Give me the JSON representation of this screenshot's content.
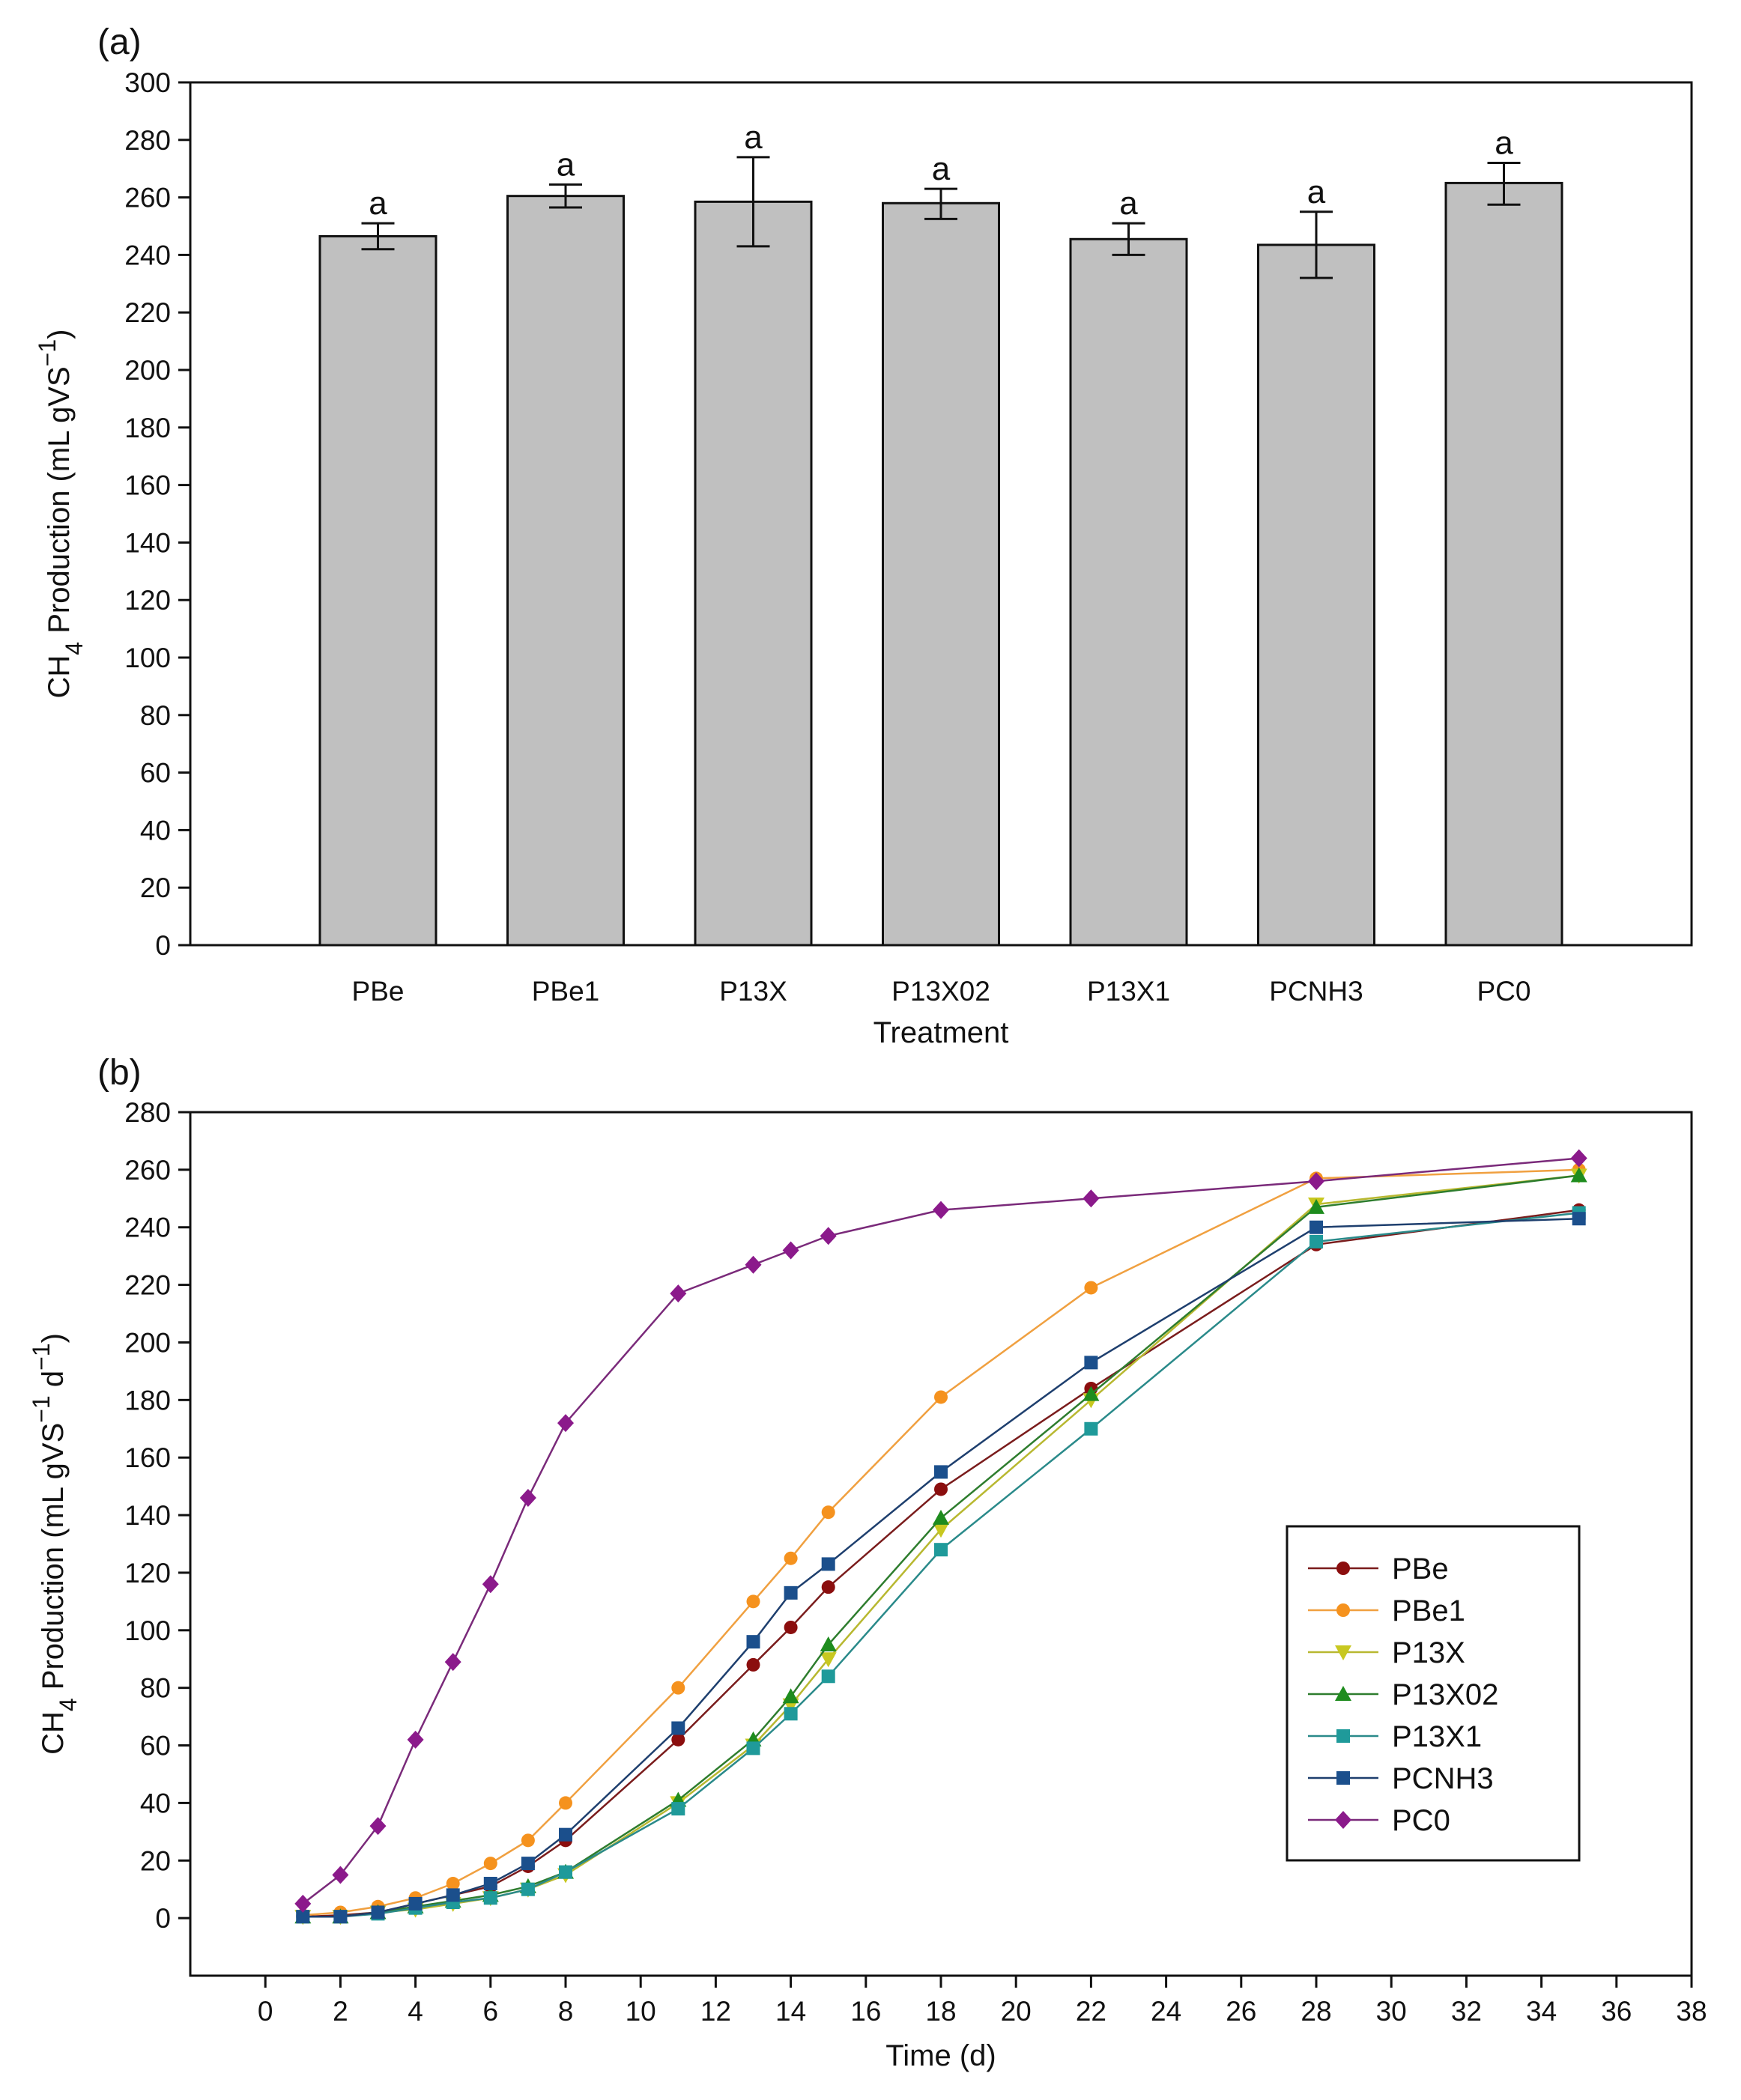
{
  "chart_data": [
    {
      "panel_label": "(a)",
      "type": "bar",
      "title": "",
      "xlabel": "Treatment",
      "ylabel": {
        "main": "CH",
        "sub": "4",
        "rest": " Production (mL gVS",
        "sup": "−1",
        "close": ")"
      },
      "ylim": [
        0,
        300
      ],
      "yticks": [
        0,
        20,
        40,
        60,
        80,
        100,
        120,
        140,
        160,
        180,
        200,
        220,
        240,
        260,
        280,
        300
      ],
      "categories": [
        "PBe",
        "PBe1",
        "P13X",
        "P13X02",
        "P13X1",
        "PCNH3",
        "PC0"
      ],
      "values": [
        246.5,
        260.5,
        258.5,
        258,
        245.5,
        243.5,
        265
      ],
      "error_low": [
        242,
        256.5,
        243,
        252.5,
        240,
        232,
        257.5
      ],
      "error_high": [
        251,
        264.5,
        274,
        263,
        251,
        255,
        272
      ],
      "significance": [
        "a",
        "a",
        "a",
        "a",
        "a",
        "a",
        "a"
      ],
      "bar_color": "#c0c0c0"
    },
    {
      "panel_label": "(b)",
      "type": "line",
      "title": "",
      "xlabel": "Time (d)",
      "ylabel": {
        "main": "CH",
        "sub": "4",
        "rest": " Production (mL gVS",
        "sup": "−1",
        "mid": " d",
        "sup2": "−1",
        "close": ")"
      },
      "xlim": [
        -2,
        38
      ],
      "ylim": [
        -20,
        280
      ],
      "xticks": [
        0,
        2,
        4,
        6,
        8,
        10,
        12,
        14,
        16,
        18,
        20,
        22,
        24,
        26,
        28,
        30,
        32,
        34,
        36,
        38
      ],
      "yticks": [
        0,
        20,
        40,
        60,
        80,
        100,
        120,
        140,
        160,
        180,
        200,
        220,
        240,
        260,
        280
      ],
      "x": [
        1,
        2,
        3,
        4,
        5,
        6,
        7,
        8,
        11,
        13,
        14,
        15,
        18,
        22,
        28,
        35
      ],
      "legend_position": "lower-right",
      "series": [
        {
          "name": "PBe",
          "marker": "circle",
          "marker_color": "#8b0e0e",
          "line_color": "#7a1c1c",
          "values": [
            0.5,
            1,
            2,
            5,
            8,
            11,
            18,
            27,
            62,
            88,
            101,
            115,
            149,
            184,
            234,
            246
          ]
        },
        {
          "name": "PBe1",
          "marker": "circle",
          "marker_color": "#f5921e",
          "line_color": "#f0a040",
          "values": [
            1,
            2,
            4,
            7,
            12,
            19,
            27,
            40,
            80,
            110,
            125,
            141,
            181,
            219,
            257,
            260
          ]
        },
        {
          "name": "P13X",
          "marker": "triangle-down",
          "marker_color": "#c8c820",
          "line_color": "#b8b830",
          "values": [
            0.5,
            0.5,
            2,
            3,
            5,
            7,
            10,
            15,
            40,
            60,
            74,
            90,
            135,
            180,
            248,
            258
          ]
        },
        {
          "name": "P13X02",
          "marker": "triangle-up",
          "marker_color": "#1e8c1e",
          "line_color": "#2e7d2e",
          "values": [
            0.5,
            0.5,
            2,
            4,
            6,
            8,
            11,
            16,
            41,
            62,
            77,
            95,
            139,
            182,
            247,
            258
          ]
        },
        {
          "name": "P13X1",
          "marker": "square",
          "marker_color": "#1f9a9a",
          "line_color": "#2a8a8a",
          "values": [
            0.5,
            0.5,
            1.5,
            3.5,
            5.5,
            7,
            10,
            16,
            38,
            59,
            71,
            84,
            128,
            170,
            235,
            245
          ]
        },
        {
          "name": "PCNH3",
          "marker": "square",
          "marker_color": "#1b4f8c",
          "line_color": "#1e3f6e",
          "values": [
            0.5,
            0.5,
            2,
            5,
            8,
            12,
            19,
            29,
            66,
            96,
            113,
            123,
            155,
            193,
            240,
            243
          ]
        },
        {
          "name": "PC0",
          "marker": "diamond",
          "marker_color": "#8b1a8b",
          "line_color": "#7a2a7a",
          "values": [
            5,
            15,
            32,
            62,
            89,
            116,
            146,
            172,
            217,
            227,
            232,
            237,
            246,
            250,
            256,
            264
          ]
        }
      ]
    }
  ]
}
